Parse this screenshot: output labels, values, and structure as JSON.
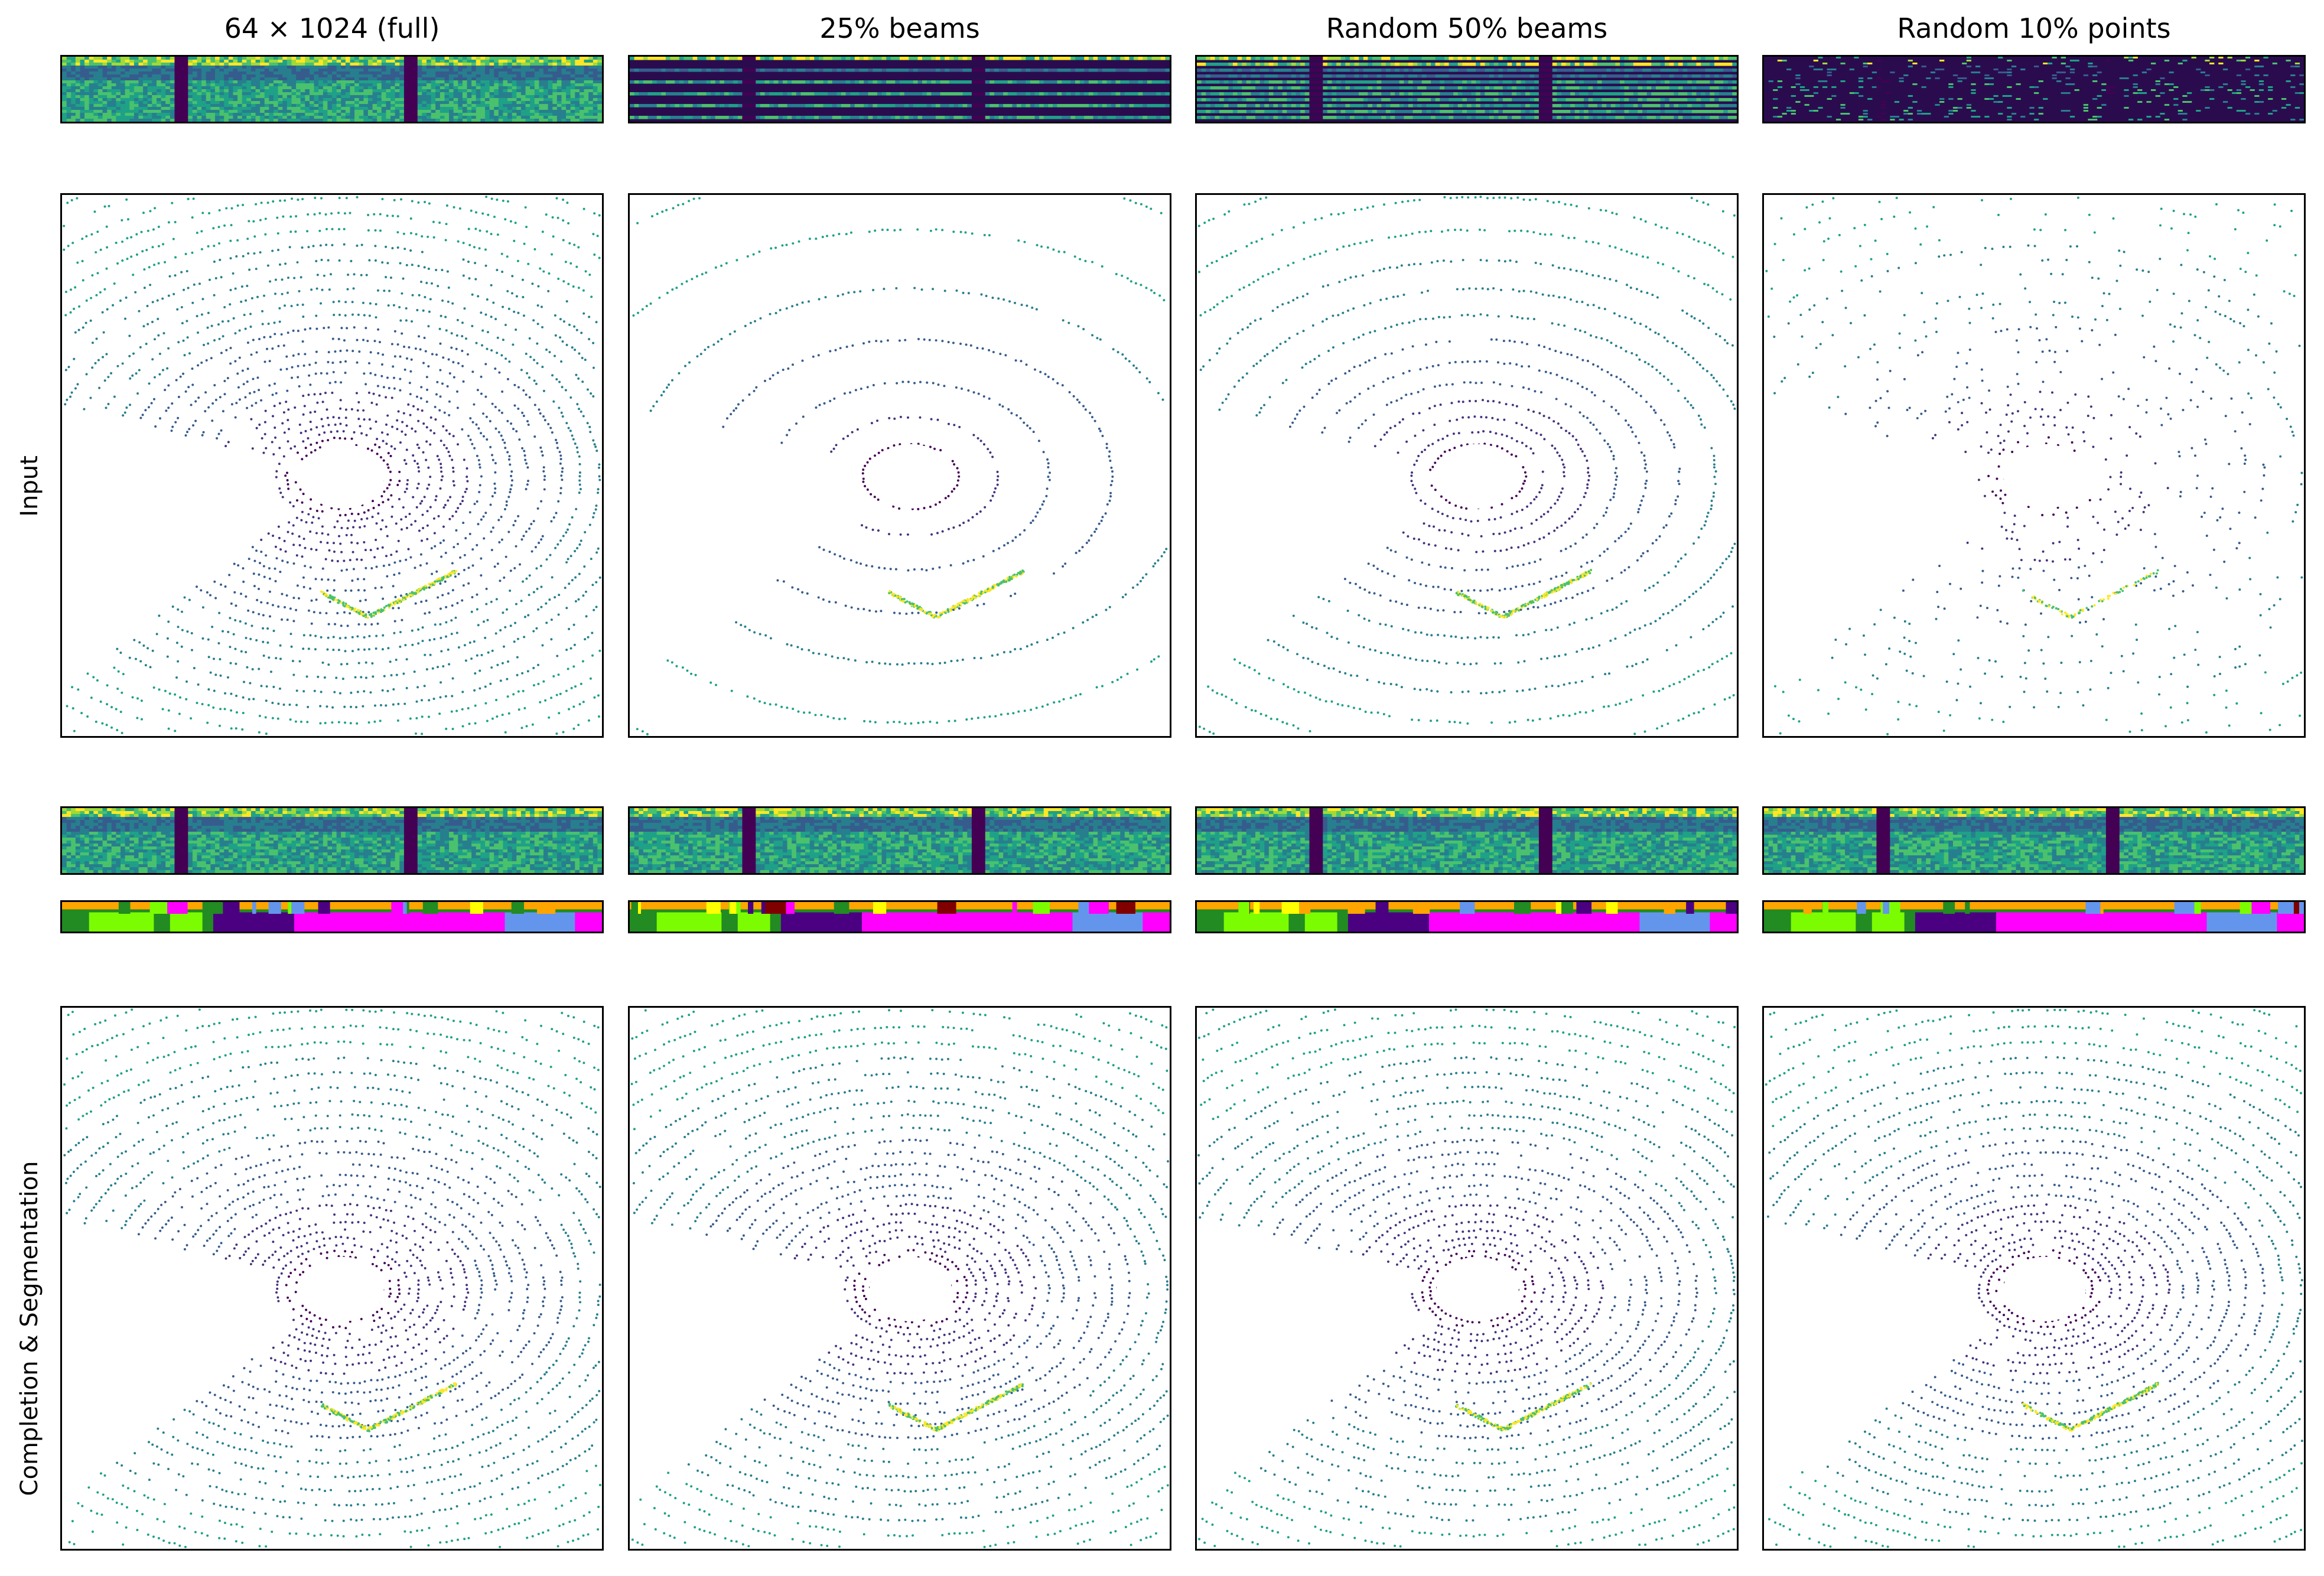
{
  "columns": [
    {
      "title": "64 × 1024 (full)",
      "key": "full",
      "density": 1.0,
      "mode": "full"
    },
    {
      "title": "25% beams",
      "key": "beams25",
      "density": 0.25,
      "mode": "beams"
    },
    {
      "title": "Random 50% beams",
      "key": "beams50",
      "density": 0.5,
      "mode": "beams"
    },
    {
      "title": "Random 10% points",
      "key": "points10",
      "density": 0.1,
      "mode": "points"
    }
  ],
  "row_labels": {
    "input": "Input",
    "completion": "Completion & Segmentation"
  },
  "colors": {
    "viridis": [
      "#440154",
      "#46327e",
      "#365c8d",
      "#277f8e",
      "#1fa187",
      "#4ac16d",
      "#a0da39",
      "#fde725"
    ],
    "segmentation": [
      "#ff00ff",
      "#6495ed",
      "#228b22",
      "#7cfc00",
      "#4b0082",
      "#ffa500",
      "#800000",
      "#ffff00"
    ]
  }
}
